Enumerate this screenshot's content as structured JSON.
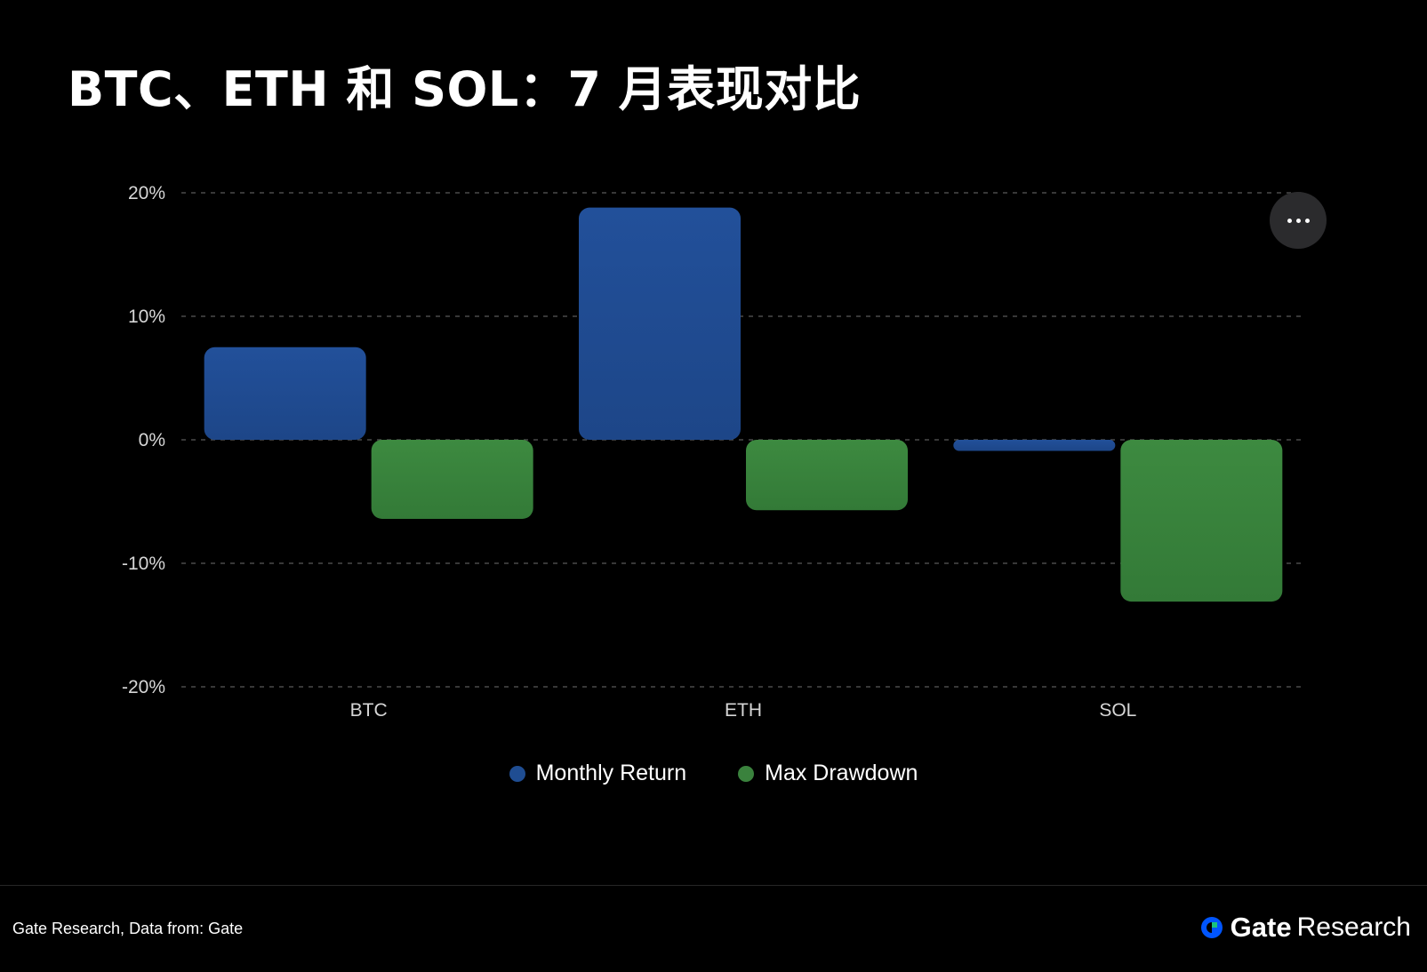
{
  "title": "BTC、ETH 和 SOL：7 月表现对比",
  "colors": {
    "background": "#000000",
    "monthly_return": "#1f4d92",
    "max_drawdown": "#3a823d",
    "grid": "#4a4a4a",
    "tick_text": "#d6d6d6",
    "brand_icon": "#0055ff"
  },
  "chart_data": {
    "type": "bar",
    "title": "BTC、ETH 和 SOL：7 月表现对比",
    "categories": [
      "BTC",
      "ETH",
      "SOL"
    ],
    "series": [
      {
        "name": "Monthly Return",
        "values": [
          7.5,
          18.8,
          -0.9
        ],
        "color": "#1f4d92"
      },
      {
        "name": "Max Drawdown",
        "values": [
          -6.4,
          -5.7,
          -13.1
        ],
        "color": "#3a823d"
      }
    ],
    "ylim": [
      -20,
      20
    ],
    "yticks": [
      20,
      10,
      0,
      -10,
      -20
    ],
    "ytick_labels": [
      "20%",
      "10%",
      "0%",
      "-10%",
      "-20%"
    ],
    "grid": true,
    "legend_position": "bottom-center",
    "xlabel": "",
    "ylabel": ""
  },
  "menu": {
    "icon": "more-horizontal-icon"
  },
  "footer": {
    "source": "Gate Research, Data from: Gate",
    "brand_name": "Gate",
    "brand_suffix": "Research",
    "brand_icon": "gate-logo-icon"
  }
}
